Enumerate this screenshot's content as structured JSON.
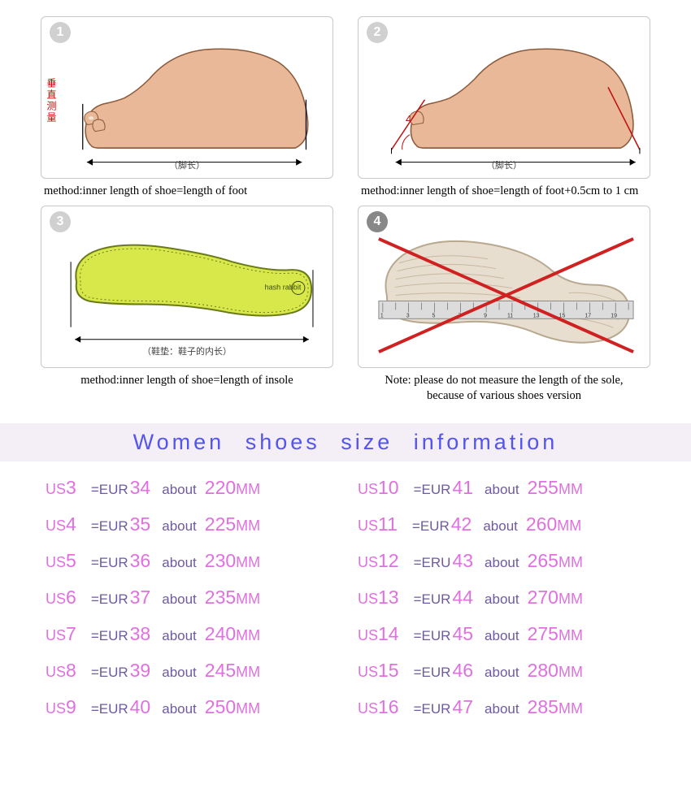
{
  "panels": [
    {
      "num": "1",
      "caption": "method:inner length of shoe=length of foot",
      "vertical_text": "垂直测量",
      "ruler_text": "（脚长）"
    },
    {
      "num": "2",
      "caption": "method:inner length of shoe=length of foot+0.5cm to 1 cm",
      "angle_text": "45°",
      "ruler_text": "（脚长）"
    },
    {
      "num": "3",
      "caption": "method:inner length of shoe=length of insole",
      "ruler_text": "（鞋垫：鞋子的内长）"
    },
    {
      "num": "4",
      "caption": "Note: please do not measure the length of the sole,\nbecause of various shoes version"
    }
  ],
  "size_header": "Women shoes size information",
  "labels": {
    "us": "US",
    "eq_eur": "=EUR",
    "eq_eru": "=ERU",
    "about": "about",
    "mm": "MM"
  },
  "sizes_left": [
    {
      "us": "3",
      "eur": "34",
      "mm": "220"
    },
    {
      "us": "4",
      "eur": "35",
      "mm": "225"
    },
    {
      "us": "5",
      "eur": "36",
      "mm": "230"
    },
    {
      "us": "6",
      "eur": "37",
      "mm": "235"
    },
    {
      "us": "7",
      "eur": "38",
      "mm": "240"
    },
    {
      "us": "8",
      "eur": "39",
      "mm": "245"
    },
    {
      "us": "9",
      "eur": "40",
      "mm": "250"
    }
  ],
  "sizes_right": [
    {
      "us": "10",
      "eur": "41",
      "mm": "255"
    },
    {
      "us": "11",
      "eur": "42",
      "mm": "260"
    },
    {
      "us": "12",
      "eur": "43",
      "mm": "265",
      "eru": true
    },
    {
      "us": "13",
      "eur": "44",
      "mm": "270"
    },
    {
      "us": "14",
      "eur": "45",
      "mm": "275"
    },
    {
      "us": "15",
      "eur": "46",
      "mm": "280"
    },
    {
      "us": "16",
      "eur": "47",
      "mm": "285"
    }
  ],
  "colors": {
    "pink": "#e070e0",
    "purple": "#6e5aa0",
    "header_blue": "#5454ee",
    "header_bg": "#f4eef6",
    "insole_fill": "#d8e84a",
    "cross_red": "#d02020",
    "foot_skin": "#e8b898",
    "angle_red": "#c01010"
  }
}
